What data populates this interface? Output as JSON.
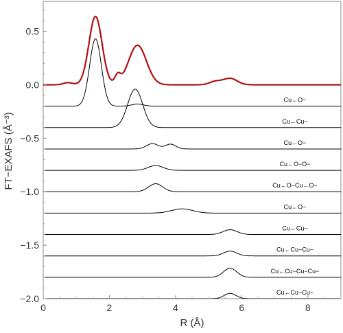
{
  "chart_data": {
    "type": "line",
    "xlabel": "R (Å)",
    "ylabel": "FT−EXAFS (Å⁻³)",
    "xlim": [
      0,
      9
    ],
    "ylim": [
      -2.0,
      0.78
    ],
    "xticks": [
      0,
      2,
      4,
      6,
      8
    ],
    "xtick_labels": [
      "0",
      "2",
      "4",
      "6",
      "8"
    ],
    "yticks": [
      0.5,
      0.0,
      -0.5,
      -1.0,
      -1.5,
      -2.0
    ],
    "ytick_labels": [
      "0.5",
      "0.0",
      "−0.5",
      "−1.0",
      "−1.5",
      "−2.0"
    ],
    "grid": false,
    "colors": {
      "experimental": "#b01010",
      "paths": "#000000"
    },
    "series": [
      {
        "kind": "experimental",
        "baseline": 0.0,
        "peaks": [
          {
            "center": 1.58,
            "amp": 0.64,
            "width": 0.28
          },
          {
            "center": 2.85,
            "amp": 0.37,
            "width": 0.38
          },
          {
            "center": 2.25,
            "amp": 0.08,
            "width": 0.12
          },
          {
            "center": 5.65,
            "amp": 0.06,
            "width": 0.3
          },
          {
            "center": 5.2,
            "amp": 0.03,
            "width": 0.25
          },
          {
            "center": 0.75,
            "amp": 0.02,
            "width": 0.2
          }
        ]
      },
      {
        "name": "Cu←O−",
        "baseline": -0.2,
        "start_x": 0.0,
        "start_y": -0.2,
        "peaks": [
          {
            "center": 1.58,
            "amp": 0.63,
            "width": 0.25
          },
          {
            "center": 2.85,
            "amp": 0.02,
            "width": 0.25
          }
        ]
      },
      {
        "name": "Cu←Cu−",
        "baseline": -0.4,
        "peaks": [
          {
            "center": 2.78,
            "amp": 0.36,
            "width": 0.32
          }
        ]
      },
      {
        "name": "Cu←O−",
        "baseline": -0.6,
        "peaks": [
          {
            "center": 3.3,
            "amp": 0.05,
            "width": 0.25
          },
          {
            "center": 3.85,
            "amp": 0.045,
            "width": 0.22
          }
        ]
      },
      {
        "name": "Cu←O−O−",
        "baseline": -0.8,
        "peaks": [
          {
            "center": 3.4,
            "amp": 0.045,
            "width": 0.32
          }
        ]
      },
      {
        "name": "Cu←O−Cu←O−",
        "baseline": -1.0,
        "peaks": [
          {
            "center": 3.4,
            "amp": 0.075,
            "width": 0.3
          }
        ]
      },
      {
        "name": "Cu←O−",
        "baseline": -1.2,
        "peaks": [
          {
            "center": 4.2,
            "amp": 0.04,
            "width": 0.45
          }
        ]
      },
      {
        "name": "Cu←Cu−",
        "baseline": -1.4,
        "peaks": [
          {
            "center": 5.65,
            "amp": 0.045,
            "width": 0.3
          }
        ]
      },
      {
        "name": "Cu←Cu−Cu−",
        "baseline": -1.6,
        "peaks": [
          {
            "center": 5.65,
            "amp": 0.045,
            "width": 0.28
          }
        ]
      },
      {
        "name": "Cu←Cu−Cu−Cu−",
        "baseline": -1.8,
        "peaks": [
          {
            "center": 5.65,
            "amp": 0.085,
            "width": 0.28
          }
        ]
      },
      {
        "name": "Cu←Cu−Cu−",
        "baseline": -2.0,
        "peaks": [
          {
            "center": 5.65,
            "amp": 0.05,
            "width": 0.25
          }
        ]
      }
    ]
  }
}
